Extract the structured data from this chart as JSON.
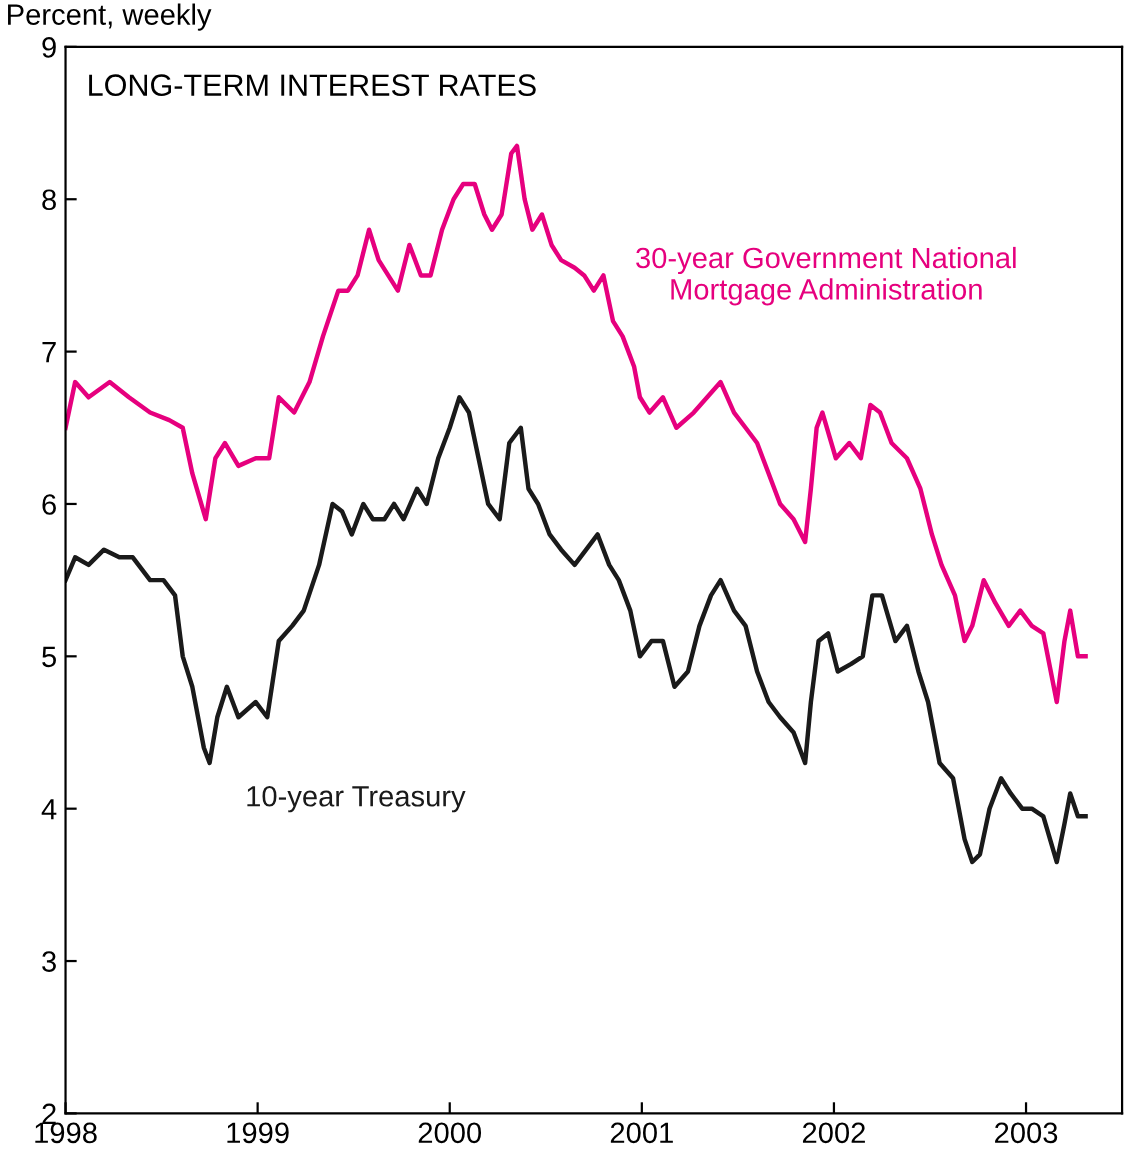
{
  "chart_data": {
    "type": "line",
    "title": "LONG-TERM INTEREST RATES",
    "ylabel": "Percent, weekly",
    "xlim": [
      1998,
      2003.5
    ],
    "xticks": [
      1998,
      1999,
      2000,
      2001,
      2002,
      2003
    ],
    "ylim": [
      2,
      9
    ],
    "yticks": [
      2,
      3,
      4,
      5,
      6,
      7,
      8,
      9
    ],
    "grid": false,
    "legend": false,
    "marker": "none",
    "line_style": "solid",
    "series": [
      {
        "name": "30-year Government National\nMortgage Administration",
        "color": "#e6007e",
        "x": [
          1998.0,
          1998.05,
          1998.12,
          1998.23,
          1998.33,
          1998.44,
          1998.54,
          1998.61,
          1998.66,
          1998.73,
          1998.78,
          1998.83,
          1998.9,
          1998.99,
          1999.06,
          1999.11,
          1999.19,
          1999.27,
          1999.34,
          1999.42,
          1999.47,
          1999.52,
          1999.58,
          1999.63,
          1999.68,
          1999.73,
          1999.79,
          1999.85,
          1999.9,
          1999.96,
          2000.02,
          2000.07,
          2000.13,
          2000.18,
          2000.22,
          2000.27,
          2000.32,
          2000.35,
          2000.39,
          2000.43,
          2000.48,
          2000.53,
          2000.58,
          2000.65,
          2000.7,
          2000.75,
          2000.8,
          2000.85,
          2000.9,
          2000.96,
          2000.99,
          2001.04,
          2001.11,
          2001.18,
          2001.27,
          2001.34,
          2001.41,
          2001.48,
          2001.54,
          2001.6,
          2001.66,
          2001.72,
          2001.79,
          2001.85,
          2001.88,
          2001.91,
          2001.94,
          2002.01,
          2002.08,
          2002.14,
          2002.19,
          2002.24,
          2002.3,
          2002.38,
          2002.45,
          2002.51,
          2002.56,
          2002.63,
          2002.68,
          2002.72,
          2002.78,
          2002.84,
          2002.91,
          2002.97,
          2003.03,
          2003.09,
          2003.16,
          2003.2,
          2003.23,
          2003.27,
          2003.31
        ],
        "values": [
          6.5,
          6.8,
          6.7,
          6.8,
          6.7,
          6.6,
          6.55,
          6.5,
          6.2,
          5.9,
          6.3,
          6.4,
          6.25,
          6.3,
          6.3,
          6.7,
          6.6,
          6.8,
          7.1,
          7.4,
          7.4,
          7.5,
          7.8,
          7.6,
          7.5,
          7.4,
          7.7,
          7.5,
          7.5,
          7.8,
          8.0,
          8.1,
          8.1,
          7.9,
          7.8,
          7.9,
          8.3,
          8.35,
          8.0,
          7.8,
          7.9,
          7.7,
          7.6,
          7.55,
          7.5,
          7.4,
          7.5,
          7.2,
          7.1,
          6.9,
          6.7,
          6.6,
          6.7,
          6.5,
          6.6,
          6.7,
          6.8,
          6.6,
          6.5,
          6.4,
          6.2,
          6.0,
          5.9,
          5.75,
          6.1,
          6.5,
          6.6,
          6.3,
          6.4,
          6.3,
          6.65,
          6.6,
          6.4,
          6.3,
          6.1,
          5.8,
          5.6,
          5.4,
          5.1,
          5.2,
          5.5,
          5.35,
          5.2,
          5.3,
          5.2,
          5.15,
          4.7,
          5.1,
          5.3,
          5.0,
          5.0
        ]
      },
      {
        "name": "10-year Treasury",
        "color": "#1a1a1a",
        "x": [
          1998.0,
          1998.05,
          1998.12,
          1998.2,
          1998.28,
          1998.35,
          1998.44,
          1998.51,
          1998.57,
          1998.61,
          1998.66,
          1998.72,
          1998.75,
          1998.79,
          1998.84,
          1998.9,
          1998.99,
          1999.05,
          1999.11,
          1999.18,
          1999.24,
          1999.32,
          1999.39,
          1999.44,
          1999.49,
          1999.55,
          1999.6,
          1999.66,
          1999.71,
          1999.76,
          1999.83,
          1999.88,
          1999.94,
          2000.0,
          2000.05,
          2000.1,
          2000.15,
          2000.2,
          2000.26,
          2000.31,
          2000.37,
          2000.41,
          2000.46,
          2000.52,
          2000.58,
          2000.65,
          2000.71,
          2000.77,
          2000.83,
          2000.88,
          2000.94,
          2000.99,
          2001.05,
          2001.11,
          2001.17,
          2001.24,
          2001.3,
          2001.36,
          2001.41,
          2001.48,
          2001.54,
          2001.6,
          2001.66,
          2001.72,
          2001.79,
          2001.85,
          2001.88,
          2001.92,
          2001.97,
          2002.02,
          2002.09,
          2002.15,
          2002.2,
          2002.25,
          2002.32,
          2002.38,
          2002.44,
          2002.49,
          2002.55,
          2002.62,
          2002.68,
          2002.72,
          2002.76,
          2002.81,
          2002.87,
          2002.92,
          2002.98,
          2003.03,
          2003.09,
          2003.16,
          2003.2,
          2003.23,
          2003.27,
          2003.31
        ],
        "values": [
          5.5,
          5.65,
          5.6,
          5.7,
          5.65,
          5.65,
          5.5,
          5.5,
          5.4,
          5.0,
          4.8,
          4.4,
          4.3,
          4.6,
          4.8,
          4.6,
          4.7,
          4.6,
          5.1,
          5.2,
          5.3,
          5.6,
          6.0,
          5.95,
          5.8,
          6.0,
          5.9,
          5.9,
          6.0,
          5.9,
          6.1,
          6.0,
          6.3,
          6.5,
          6.7,
          6.6,
          6.3,
          6.0,
          5.9,
          6.4,
          6.5,
          6.1,
          6.0,
          5.8,
          5.7,
          5.6,
          5.7,
          5.8,
          5.6,
          5.5,
          5.3,
          5.0,
          5.1,
          5.1,
          4.8,
          4.9,
          5.2,
          5.4,
          5.5,
          5.3,
          5.2,
          4.9,
          4.7,
          4.6,
          4.5,
          4.3,
          4.7,
          5.1,
          5.15,
          4.9,
          4.95,
          5.0,
          5.4,
          5.4,
          5.1,
          5.2,
          4.9,
          4.7,
          4.3,
          4.2,
          3.8,
          3.65,
          3.7,
          4.0,
          4.2,
          4.1,
          4.0,
          4.0,
          3.95,
          3.65,
          3.9,
          4.1,
          3.95,
          3.95
        ]
      }
    ]
  }
}
